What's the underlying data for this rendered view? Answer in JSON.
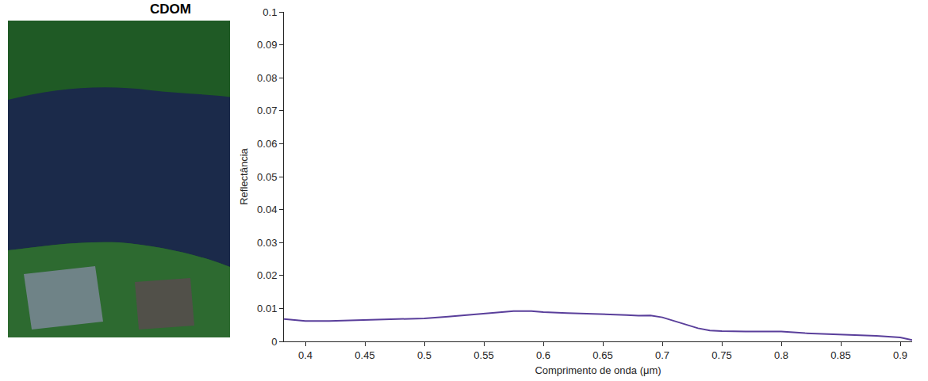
{
  "panel": {
    "title": "CDOM"
  },
  "chart_data": {
    "type": "line",
    "xlabel": "Comprimento de onda (μm)",
    "ylabel": "Reflectância",
    "x": [
      0.382,
      0.4,
      0.42,
      0.45,
      0.48,
      0.5,
      0.52,
      0.55,
      0.575,
      0.59,
      0.6,
      0.62,
      0.65,
      0.67,
      0.68,
      0.69,
      0.7,
      0.71,
      0.72,
      0.73,
      0.74,
      0.75,
      0.77,
      0.8,
      0.82,
      0.85,
      0.88,
      0.9,
      0.91
    ],
    "values": [
      0.0068,
      0.0062,
      0.0062,
      0.0065,
      0.0067,
      0.007,
      0.0075,
      0.0085,
      0.0092,
      0.0092,
      0.0089,
      0.0086,
      0.0083,
      0.008,
      0.0078,
      0.0079,
      0.0073,
      0.0062,
      0.005,
      0.004,
      0.0033,
      0.0031,
      0.003,
      0.003,
      0.0025,
      0.0021,
      0.0017,
      0.0012,
      0.0004
    ],
    "color": "#5a3f9b",
    "xlim": [
      0.382,
      0.91
    ],
    "xticks": [
      0.4,
      0.45,
      0.5,
      0.55,
      0.6,
      0.65,
      0.7,
      0.75,
      0.8,
      0.85,
      0.9
    ],
    "ylim": [
      0,
      0.1
    ],
    "yticks": [
      0,
      0.01,
      0.02,
      0.03,
      0.04,
      0.05,
      0.06,
      0.07,
      0.08,
      0.09,
      0.1
    ],
    "grid": false
  }
}
